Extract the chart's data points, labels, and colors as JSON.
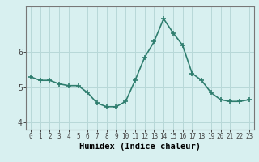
{
  "x": [
    0,
    1,
    2,
    3,
    4,
    5,
    6,
    7,
    8,
    9,
    10,
    11,
    12,
    13,
    14,
    15,
    16,
    17,
    18,
    19,
    20,
    21,
    22,
    23
  ],
  "y": [
    5.3,
    5.2,
    5.2,
    5.1,
    5.05,
    5.05,
    4.85,
    4.55,
    4.45,
    4.45,
    4.6,
    5.2,
    5.85,
    6.3,
    6.95,
    6.55,
    6.2,
    5.4,
    5.2,
    4.85,
    4.65,
    4.6,
    4.6,
    4.65
  ],
  "xlabel": "Humidex (Indice chaleur)",
  "yticks": [
    4,
    5,
    6
  ],
  "ylim": [
    3.8,
    7.3
  ],
  "xlim": [
    -0.5,
    23.5
  ],
  "line_color": "#2e7d6e",
  "marker": "+",
  "marker_size": 4,
  "marker_lw": 1.2,
  "line_width": 1.2,
  "bg_color": "#d8f0f0",
  "grid_color": "#b8d8d8",
  "tick_fontsize": 5.5,
  "xlabel_fontsize": 7.5,
  "ytick_fontsize": 7
}
